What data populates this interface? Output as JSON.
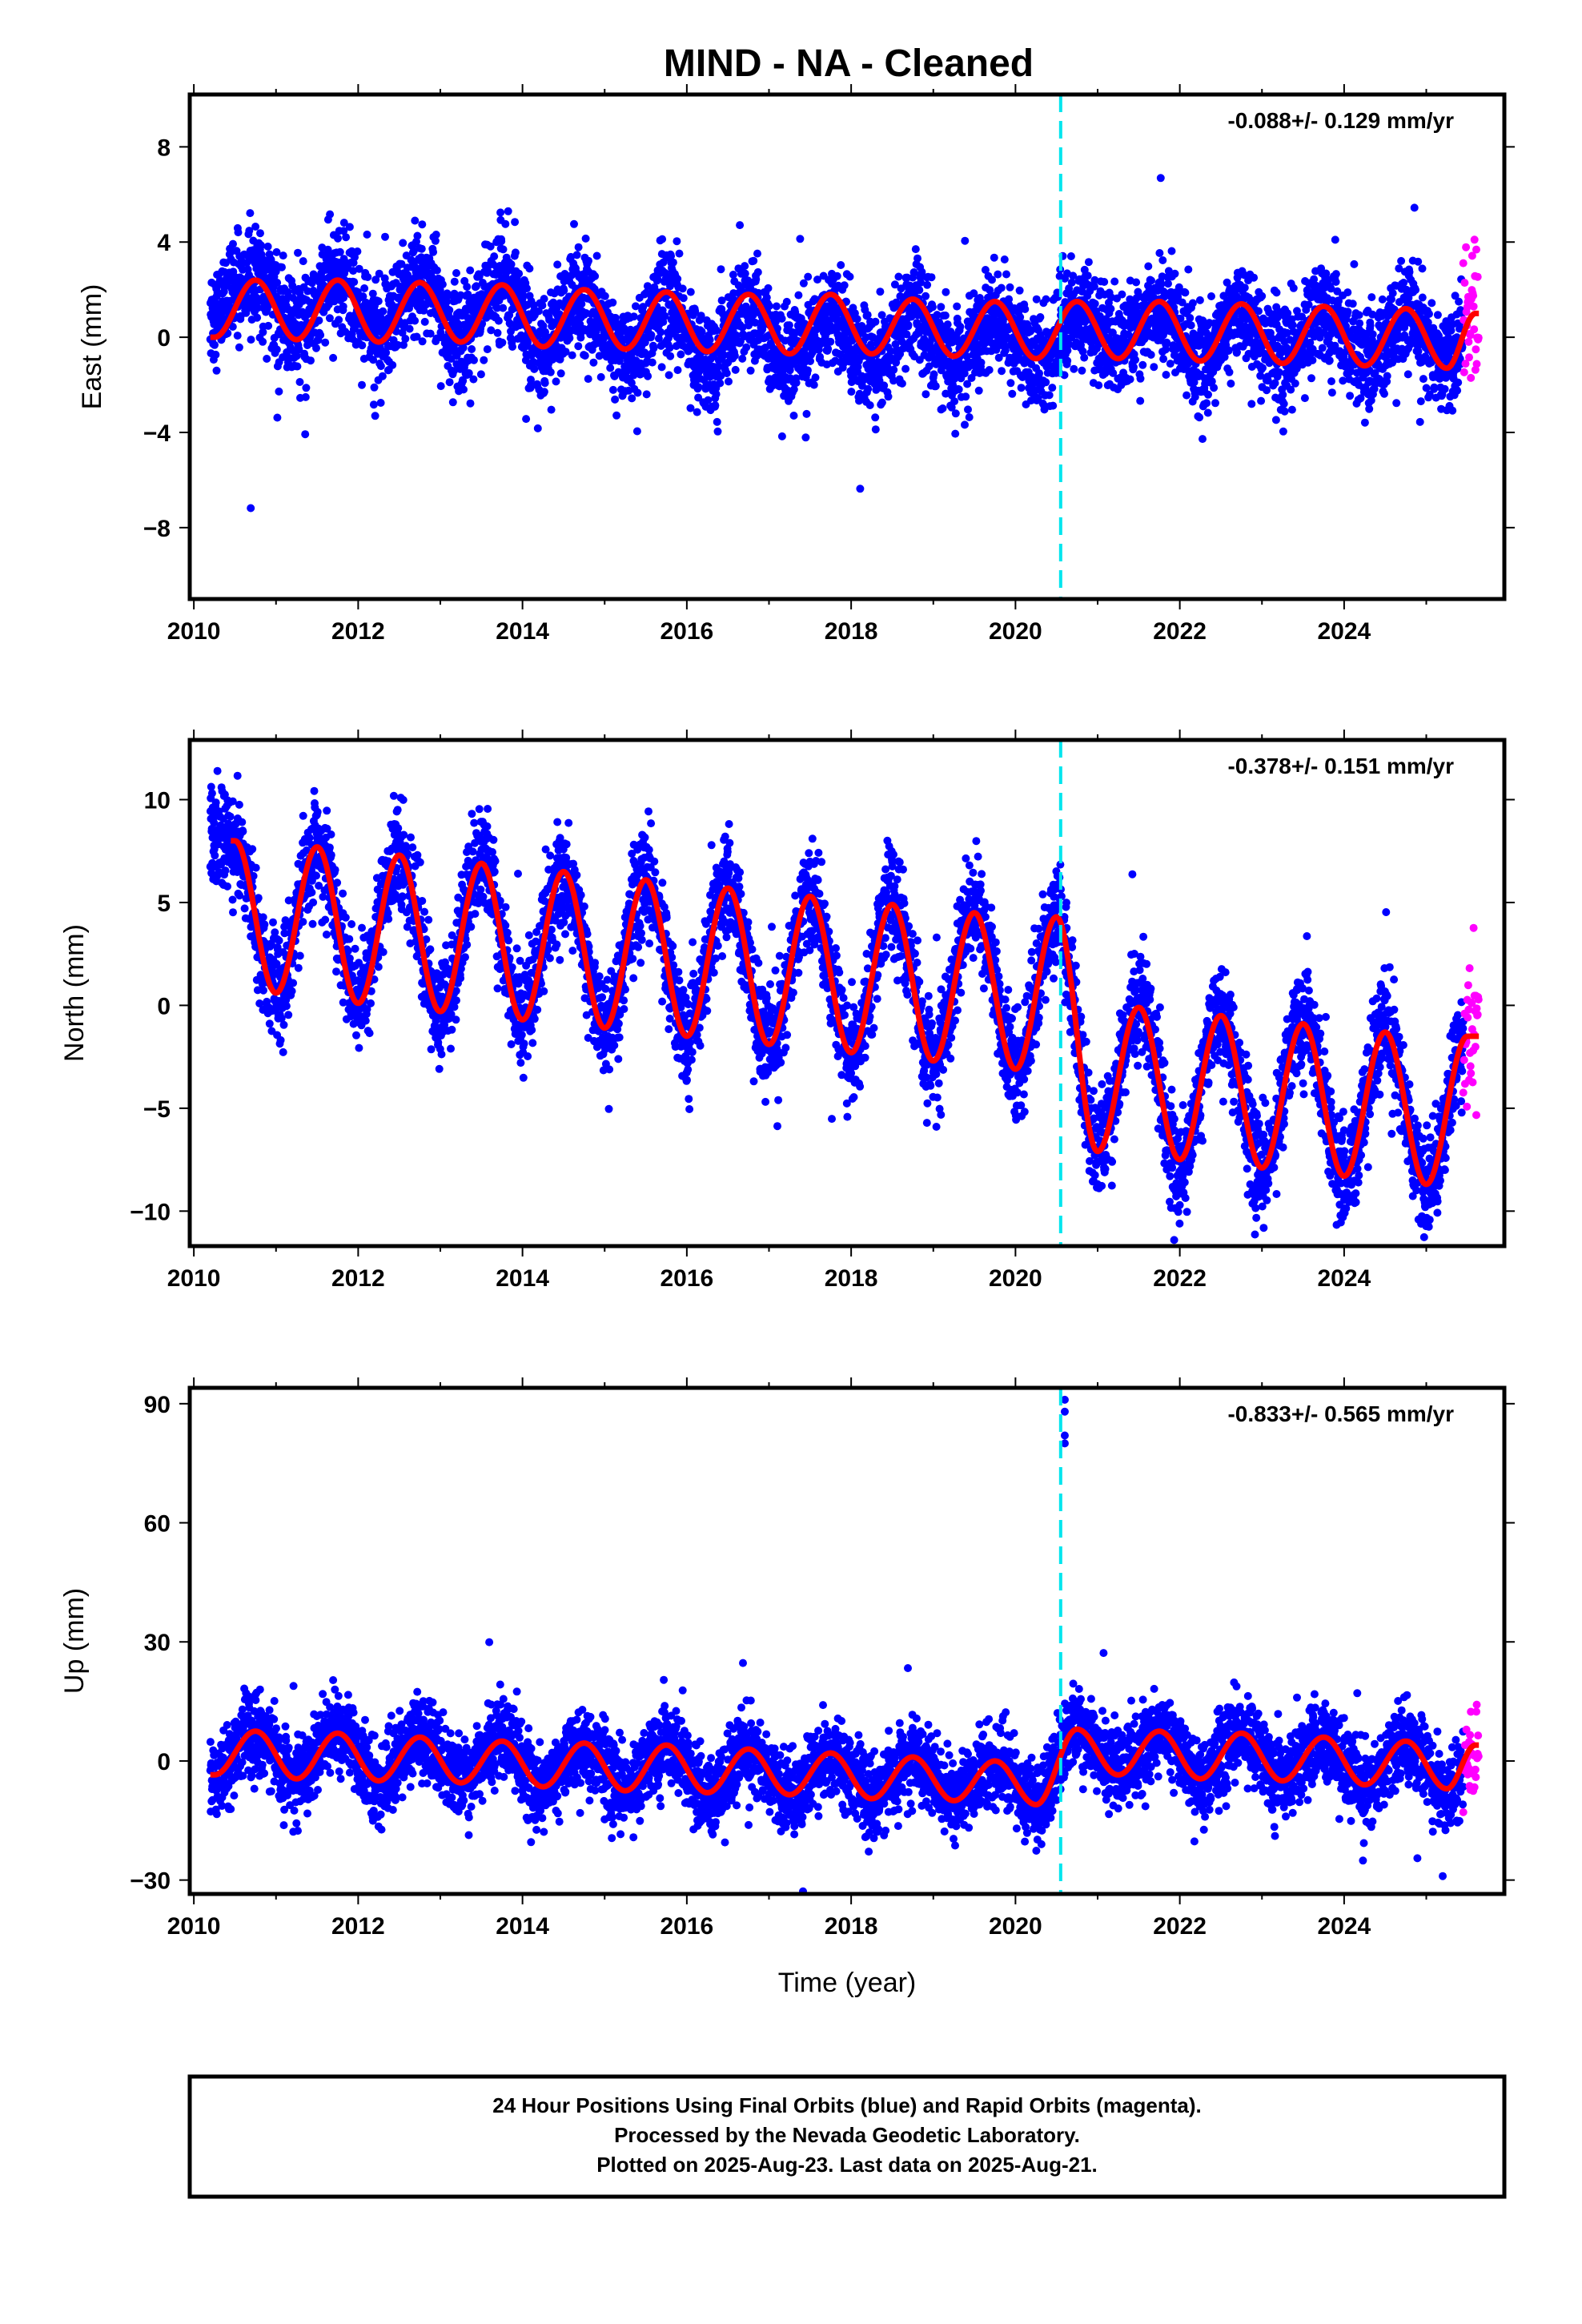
{
  "title": "MIND  - NA - Cleaned",
  "xlabel": "Time (year)",
  "colors": {
    "final_orbits": "#0000ff",
    "rapid_orbits": "#ff00ff",
    "model": "#ff0000",
    "equipment_change": "#00e5ee"
  },
  "footer": {
    "line1": "24 Hour Positions Using Final Orbits (blue) and Rapid Orbits (magenta).",
    "line2": "Processed by the Nevada Geodetic Laboratory.",
    "line3": "Plotted on 2025-Aug-23. Last data on 2025-Aug-21."
  },
  "chart_data": [
    {
      "type": "scatter",
      "ylabel": "East (mm)",
      "rate_label": "-0.088+/- 0.129 mm/yr",
      "xlim": [
        2009.95,
        2025.95
      ],
      "ylim": [
        -11.0,
        10.2
      ],
      "xticks": [
        2010,
        2012,
        2014,
        2016,
        2018,
        2020,
        2022,
        2024
      ],
      "yticks": [
        {
          "v": 8,
          "label": "8"
        },
        {
          "v": 4,
          "label": "4"
        },
        {
          "v": 0,
          "label": "0"
        },
        {
          "v": -4,
          "label": "−4"
        },
        {
          "v": -8,
          "label": "−8"
        }
      ],
      "grid": false,
      "data_span": [
        2010.2,
        2025.64
      ],
      "rapid_span": [
        2025.45,
        2025.64
      ],
      "equipment_change_year": 2020.55,
      "series": [
        {
          "role": "daily_position",
          "x": [
            2010.25,
            2010.75,
            2011.25,
            2011.75,
            2012.25,
            2012.75,
            2013.25,
            2013.75,
            2014.25,
            2014.75,
            2015.25,
            2015.75,
            2016.25,
            2016.75,
            2017.25,
            2017.75,
            2018.25,
            2018.75,
            2019.25,
            2019.75,
            2020.25,
            2020.75,
            2021.25,
            2021.75,
            2022.25,
            2022.75,
            2023.25,
            2023.75,
            2024.25,
            2024.75,
            2025.25,
            2025.6
          ],
          "y": [
            1.0,
            2.5,
            0.4,
            2.4,
            0.2,
            2.6,
            0.0,
            2.4,
            -0.6,
            1.8,
            -0.9,
            1.6,
            -1.2,
            1.2,
            -0.8,
            1.0,
            -1.0,
            1.0,
            -1.0,
            0.6,
            -1.0,
            1.0,
            -0.4,
            1.0,
            -0.8,
            1.0,
            -0.8,
            1.0,
            -1.0,
            1.0,
            -1.0,
            1.2
          ]
        },
        {
          "role": "model",
          "x": [
            2010.25,
            2010.75,
            2011.25,
            2011.75,
            2012.25,
            2012.75,
            2013.25,
            2013.75,
            2014.25,
            2014.75,
            2015.25,
            2015.75,
            2016.25,
            2016.75,
            2017.25,
            2017.75,
            2018.25,
            2018.75,
            2019.25,
            2019.75,
            2020.25,
            2020.75,
            2021.25,
            2021.75,
            2022.25,
            2022.75,
            2023.25,
            2023.75,
            2024.25,
            2024.75,
            2025.25,
            2025.6
          ],
          "y": [
            0.0,
            2.4,
            -0.1,
            2.4,
            -0.2,
            2.3,
            -0.2,
            2.2,
            -0.4,
            2.0,
            -0.5,
            1.9,
            -0.6,
            1.8,
            -0.7,
            1.8,
            -0.7,
            1.6,
            -0.8,
            1.5,
            -0.9,
            1.5,
            -0.9,
            1.5,
            -1.0,
            1.4,
            -1.1,
            1.3,
            -1.2,
            1.2,
            -1.3,
            1.0
          ]
        }
      ]
    },
    {
      "type": "scatter",
      "ylabel": "North (mm)",
      "rate_label": "-0.378+/- 0.151 mm/yr",
      "xlim": [
        2009.95,
        2025.95
      ],
      "ylim": [
        -11.7,
        12.9
      ],
      "xticks": [
        2010,
        2012,
        2014,
        2016,
        2018,
        2020,
        2022,
        2024
      ],
      "yticks": [
        {
          "v": 10,
          "label": "10"
        },
        {
          "v": 5,
          "label": "5"
        },
        {
          "v": 0,
          "label": "0"
        },
        {
          "v": -5,
          "label": "−5"
        },
        {
          "v": -10,
          "label": "−10"
        }
      ],
      "grid": false,
      "data_span": [
        2010.2,
        2025.64
      ],
      "rapid_span": [
        2025.45,
        2025.64
      ],
      "equipment_change_year": 2020.55,
      "series": [
        {
          "role": "daily_position",
          "x": [
            2010.5,
            2011.0,
            2011.5,
            2012.0,
            2012.5,
            2013.0,
            2013.5,
            2014.0,
            2014.5,
            2015.0,
            2015.5,
            2016.0,
            2016.5,
            2017.0,
            2017.5,
            2018.0,
            2018.5,
            2019.0,
            2019.5,
            2020.0,
            2020.5,
            2021.0,
            2021.5,
            2022.0,
            2022.5,
            2023.0,
            2023.5,
            2024.0,
            2024.5,
            2025.0,
            2025.5
          ],
          "y": [
            8.0,
            0.7,
            7.8,
            0.2,
            7.4,
            -0.3,
            7.0,
            -0.6,
            6.5,
            -1.0,
            6.1,
            -1.4,
            5.8,
            -1.8,
            5.4,
            -2.1,
            5.0,
            -2.5,
            4.6,
            -2.9,
            4.2,
            -7.0,
            0.0,
            -7.6,
            -0.4,
            -7.9,
            -0.6,
            -8.2,
            -1.0,
            -8.6,
            -1.4
          ]
        },
        {
          "role": "model",
          "x": [
            2010.5,
            2011.0,
            2011.5,
            2012.0,
            2012.5,
            2013.0,
            2013.5,
            2014.0,
            2014.5,
            2015.0,
            2015.5,
            2016.0,
            2016.5,
            2017.0,
            2017.5,
            2018.0,
            2018.5,
            2019.0,
            2019.5,
            2020.0,
            2020.5,
            2021.0,
            2021.5,
            2022.0,
            2022.5,
            2023.0,
            2023.5,
            2024.0,
            2024.5,
            2025.0,
            2025.5
          ],
          "y": [
            8.0,
            0.6,
            7.7,
            0.1,
            7.3,
            -0.3,
            6.9,
            -0.7,
            6.5,
            -1.1,
            6.1,
            -1.5,
            5.7,
            -1.9,
            5.3,
            -2.3,
            4.9,
            -2.7,
            4.5,
            -3.1,
            4.3,
            -7.1,
            -0.1,
            -7.5,
            -0.5,
            -7.9,
            -0.9,
            -8.3,
            -1.3,
            -8.7,
            -1.5
          ]
        }
      ]
    },
    {
      "type": "scatter",
      "ylabel": "Up (mm)",
      "rate_label": "-0.833+/- 0.565 mm/yr",
      "xlim": [
        2009.95,
        2025.95
      ],
      "ylim": [
        -33.5,
        94
      ],
      "xticks": [
        2010,
        2012,
        2014,
        2016,
        2018,
        2020,
        2022,
        2024
      ],
      "yticks": [
        {
          "v": 90,
          "label": "90"
        },
        {
          "v": 60,
          "label": "60"
        },
        {
          "v": 30,
          "label": "30"
        },
        {
          "v": 0,
          "label": "0"
        },
        {
          "v": -30,
          "label": "−30"
        }
      ],
      "grid": false,
      "data_span": [
        2010.2,
        2025.64
      ],
      "rapid_span": [
        2025.45,
        2025.64
      ],
      "equipment_change_year": 2020.55,
      "outliers": [
        {
          "x": 2020.6,
          "y": 91
        },
        {
          "x": 2020.6,
          "y": 88
        },
        {
          "x": 2020.6,
          "y": 82
        },
        {
          "x": 2020.6,
          "y": 80
        },
        {
          "x": 2025.2,
          "y": -29
        }
      ],
      "series": [
        {
          "role": "daily_position",
          "x": [
            2010.25,
            2010.75,
            2011.25,
            2011.75,
            2012.25,
            2012.75,
            2013.25,
            2013.75,
            2014.25,
            2014.75,
            2015.25,
            2015.75,
            2016.25,
            2016.75,
            2017.25,
            2017.75,
            2018.25,
            2018.75,
            2019.25,
            2019.75,
            2020.25,
            2020.75,
            2021.25,
            2021.75,
            2022.25,
            2022.75,
            2023.25,
            2023.75,
            2024.25,
            2024.75,
            2025.25,
            2025.6
          ],
          "y": [
            -3,
            7,
            -4,
            7,
            -5,
            6,
            -5,
            5,
            -6,
            4,
            -7,
            4,
            -8,
            3,
            -8,
            2,
            -9,
            1,
            -10,
            0,
            -11,
            8,
            -3,
            8,
            -4,
            7,
            -5,
            6,
            -6,
            5,
            -7,
            4
          ]
        },
        {
          "role": "model",
          "x": [
            2010.25,
            2010.75,
            2011.25,
            2011.75,
            2012.25,
            2012.75,
            2013.25,
            2013.75,
            2014.25,
            2014.75,
            2015.25,
            2015.75,
            2016.25,
            2016.75,
            2017.25,
            2017.75,
            2018.25,
            2018.75,
            2019.25,
            2019.75,
            2020.25,
            2020.75,
            2021.25,
            2021.75,
            2022.25,
            2022.75,
            2023.25,
            2023.75,
            2024.25,
            2024.75,
            2025.25,
            2025.6
          ],
          "y": [
            -3.5,
            7.5,
            -4.5,
            7.0,
            -5.0,
            6.0,
            -5.5,
            5.0,
            -6.5,
            4.5,
            -7.5,
            4.0,
            -8.0,
            3.0,
            -8.5,
            2.0,
            -9.5,
            1.0,
            -10.0,
            0.0,
            -11.0,
            8.0,
            -3.5,
            7.5,
            -4.5,
            7.0,
            -5.0,
            6.0,
            -6.0,
            5.0,
            -7.0,
            4.0
          ]
        }
      ]
    }
  ]
}
